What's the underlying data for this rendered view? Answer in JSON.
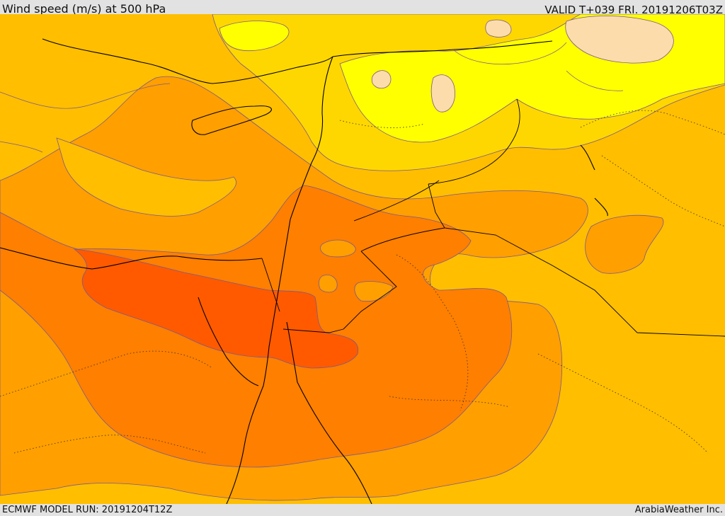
{
  "header": {
    "title": "Wind speed (m/s) at 500 hPa",
    "valid_time": "VALID T+039 FRI. 20191206T03Z"
  },
  "footer": {
    "model_run": "ECMWF MODEL RUN: 20191204T12Z",
    "credit": "ArabiaWeather Inc."
  },
  "map": {
    "region": "Eastern Mediterranean / Middle East",
    "field": "wind speed at 500 hPa",
    "colors": {
      "very_light": "#fcdcaa",
      "yellow": "#ffff00",
      "light_amber": "#ffd700",
      "amber": "#ffbe00",
      "orange": "#ff9f00",
      "dark_orange": "#ff7f00",
      "red_orange": "#ff5a00",
      "contour": "#7a5a8a",
      "coastline": "#000000"
    }
  }
}
